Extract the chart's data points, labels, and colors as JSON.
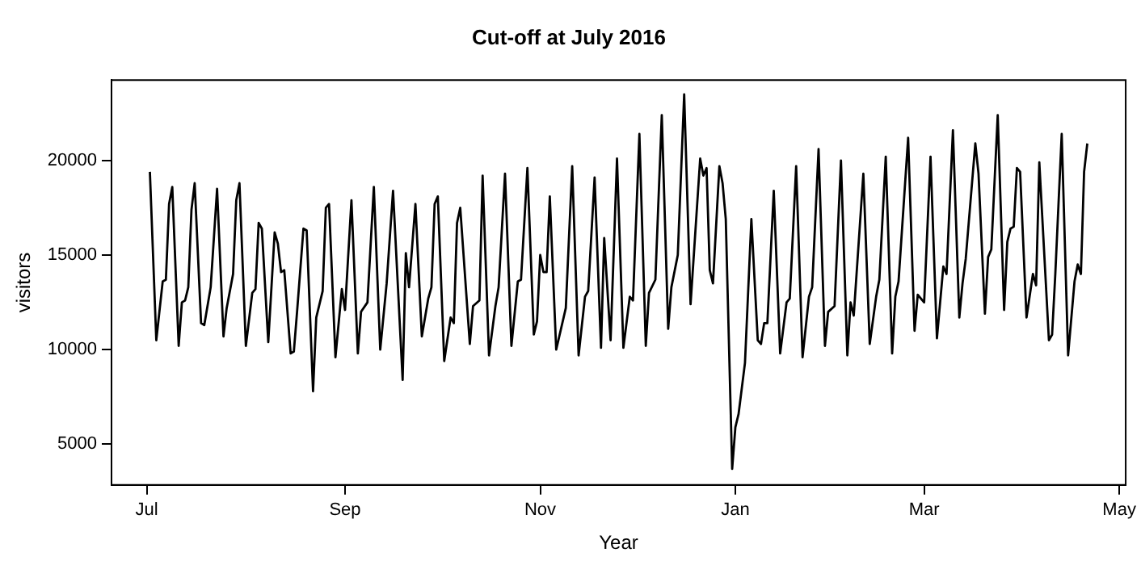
{
  "chart_data": {
    "type": "line",
    "title": "Cut-off at July 2016",
    "xlabel": "Year",
    "ylabel": "visitors",
    "x": [
      "2016-07-02",
      "2016-07-04",
      "2016-07-06",
      "2016-07-07",
      "2016-07-08",
      "2016-07-09",
      "2016-07-11",
      "2016-07-12",
      "2016-07-13",
      "2016-07-14",
      "2016-07-15",
      "2016-07-16",
      "2016-07-18",
      "2016-07-19",
      "2016-07-21",
      "2016-07-23",
      "2016-07-25",
      "2016-07-26",
      "2016-07-28",
      "2016-07-29",
      "2016-07-30",
      "2016-08-01",
      "2016-08-03",
      "2016-08-04",
      "2016-08-05",
      "2016-08-06",
      "2016-08-08",
      "2016-08-10",
      "2016-08-11",
      "2016-08-12",
      "2016-08-13",
      "2016-08-15",
      "2016-08-16",
      "2016-08-17",
      "2016-08-19",
      "2016-08-20",
      "2016-08-22",
      "2016-08-23",
      "2016-08-25",
      "2016-08-26",
      "2016-08-27",
      "2016-08-29",
      "2016-08-31",
      "2016-09-01",
      "2016-09-03",
      "2016-09-05",
      "2016-09-06",
      "2016-09-08",
      "2016-09-10",
      "2016-09-12",
      "2016-09-14",
      "2016-09-16",
      "2016-09-19",
      "2016-09-20",
      "2016-09-21",
      "2016-09-23",
      "2016-09-25",
      "2016-09-27",
      "2016-09-28",
      "2016-09-29",
      "2016-09-30",
      "2016-10-02",
      "2016-10-04",
      "2016-10-05",
      "2016-10-06",
      "2016-10-07",
      "2016-10-10",
      "2016-10-11",
      "2016-10-13",
      "2016-10-14",
      "2016-10-16",
      "2016-10-18",
      "2016-10-19",
      "2016-10-21",
      "2016-10-23",
      "2016-10-25",
      "2016-10-26",
      "2016-10-28",
      "2016-10-30",
      "2016-10-31",
      "2016-11-01",
      "2016-11-02",
      "2016-11-03",
      "2016-11-04",
      "2016-11-06",
      "2016-11-09",
      "2016-11-11",
      "2016-11-13",
      "2016-11-15",
      "2016-11-16",
      "2016-11-18",
      "2016-11-20",
      "2016-11-21",
      "2016-11-23",
      "2016-11-25",
      "2016-11-27",
      "2016-11-29",
      "2016-11-30",
      "2016-12-02",
      "2016-12-04",
      "2016-12-05",
      "2016-12-07",
      "2016-12-09",
      "2016-12-11",
      "2016-12-12",
      "2016-12-14",
      "2016-12-16",
      "2016-12-18",
      "2016-12-21",
      "2016-12-22",
      "2016-12-23",
      "2016-12-24",
      "2016-12-25",
      "2016-12-27",
      "2016-12-28",
      "2016-12-29",
      "2016-12-31",
      "2017-01-01",
      "2017-01-02",
      "2017-01-04",
      "2017-01-06",
      "2017-01-08",
      "2017-01-09",
      "2017-01-10",
      "2017-01-11",
      "2017-01-13",
      "2017-01-15",
      "2017-01-17",
      "2017-01-18",
      "2017-01-20",
      "2017-01-22",
      "2017-01-24",
      "2017-01-25",
      "2017-01-27",
      "2017-01-29",
      "2017-01-30",
      "2017-02-01",
      "2017-02-03",
      "2017-02-05",
      "2017-02-06",
      "2017-02-07",
      "2017-02-10",
      "2017-02-12",
      "2017-02-14",
      "2017-02-15",
      "2017-02-17",
      "2017-02-19",
      "2017-02-20",
      "2017-02-21",
      "2017-02-24",
      "2017-02-26",
      "2017-02-27",
      "2017-03-01",
      "2017-03-03",
      "2017-03-05",
      "2017-03-07",
      "2017-03-08",
      "2017-03-10",
      "2017-03-12",
      "2017-03-13",
      "2017-03-14",
      "2017-03-17",
      "2017-03-18",
      "2017-03-20",
      "2017-03-21",
      "2017-03-22",
      "2017-03-24",
      "2017-03-26",
      "2017-03-27",
      "2017-03-28",
      "2017-03-29",
      "2017-03-30",
      "2017-03-31",
      "2017-04-02",
      "2017-04-04",
      "2017-04-05",
      "2017-04-06",
      "2017-04-09",
      "2017-04-10",
      "2017-04-11",
      "2017-04-13",
      "2017-04-15",
      "2017-04-17",
      "2017-04-18",
      "2017-04-19",
      "2017-04-20",
      "2017-04-21"
    ],
    "series": [
      {
        "color": "#000000",
        "values": [
          19400,
          10500,
          13600,
          13700,
          17700,
          18600,
          10200,
          12500,
          12600,
          13300,
          17400,
          18800,
          11400,
          11300,
          13300,
          18500,
          10700,
          12200,
          14000,
          17900,
          18800,
          10200,
          13000,
          13200,
          16700,
          16400,
          10400,
          16200,
          15600,
          14100,
          14200,
          9800,
          9900,
          12000,
          16400,
          16300,
          7800,
          11700,
          13100,
          17500,
          17700,
          9600,
          13200,
          12100,
          17900,
          9800,
          12000,
          12500,
          18600,
          10000,
          13500,
          18400,
          8400,
          15100,
          13300,
          17700,
          10700,
          12700,
          13300,
          17700,
          18100,
          9400,
          11700,
          11400,
          16700,
          17500,
          10300,
          12300,
          12600,
          19200,
          9700,
          12300,
          13300,
          19300,
          10200,
          13600,
          13700,
          19600,
          10800,
          11500,
          15000,
          14100,
          14100,
          18100,
          10000,
          12200,
          19700,
          9700,
          12800,
          13100,
          19100,
          10100,
          15900,
          10500,
          20100,
          10100,
          12800,
          12600,
          21400,
          10200,
          13000,
          13700,
          22400,
          11100,
          13300,
          15000,
          23500,
          12400,
          20100,
          19200,
          19600,
          14200,
          13500,
          19700,
          18800,
          16900,
          3700,
          5900,
          6600,
          9300,
          16900,
          10500,
          10300,
          11400,
          11400,
          18400,
          9800,
          12500,
          12700,
          19700,
          9600,
          12800,
          13300,
          20600,
          10200,
          12000,
          12300,
          20000,
          9700,
          12500,
          11800,
          19300,
          10300,
          12800,
          13700,
          20200,
          9800,
          12800,
          13600,
          21200,
          11000,
          12900,
          12500,
          20200,
          10600,
          14400,
          14000,
          21600,
          11700,
          13500,
          14800,
          20900,
          19300,
          11900,
          14900,
          15300,
          22400,
          12100,
          15700,
          16400,
          16500,
          19600,
          19400,
          11700,
          14000,
          13400,
          19900,
          10500,
          10800,
          14000,
          21400,
          9700,
          13600,
          14500,
          14000,
          19400,
          20900
        ]
      }
    ],
    "xlim": [
      "2016-06-20",
      "2017-05-03"
    ],
    "xticks": [
      {
        "value": "2016-07-01",
        "label": "Jul"
      },
      {
        "value": "2016-09-01",
        "label": "Sep"
      },
      {
        "value": "2016-11-01",
        "label": "Nov"
      },
      {
        "value": "2017-01-01",
        "label": "Jan"
      },
      {
        "value": "2017-03-01",
        "label": "Mar"
      },
      {
        "value": "2017-05-01",
        "label": "May"
      }
    ],
    "ylim": [
      2850,
      24250
    ],
    "yticks": [
      5000,
      10000,
      15000,
      20000
    ],
    "grid": false,
    "legend": false,
    "marker": "none",
    "line_style": "solid"
  }
}
